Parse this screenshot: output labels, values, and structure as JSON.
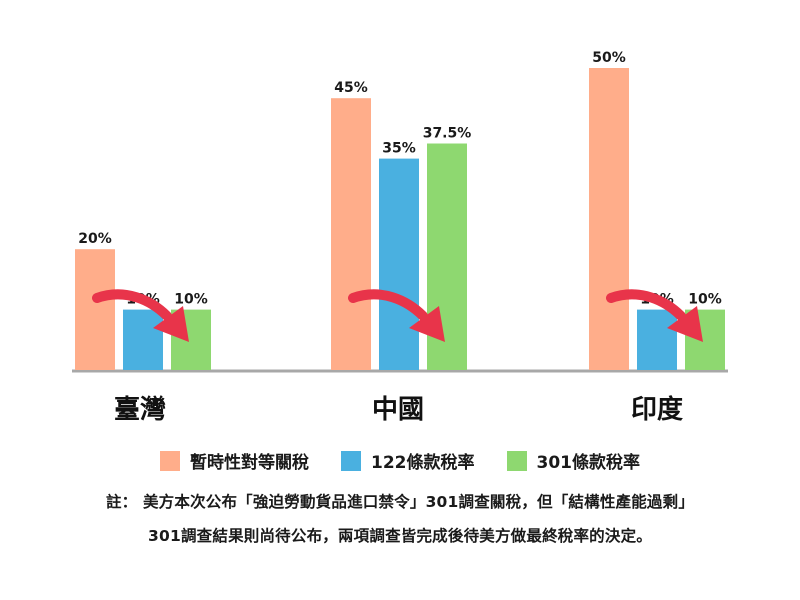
{
  "chart_data": {
    "type": "bar",
    "categories": [
      "臺灣",
      "中國",
      "印度"
    ],
    "series": [
      {
        "name": "暫時性對等關稅",
        "color": "#FFAD8A",
        "values": [
          20,
          45,
          50
        ],
        "labels": [
          "20%",
          "45%",
          "50%"
        ]
      },
      {
        "name": "122條款稅率",
        "color": "#4AB0E0",
        "values": [
          10,
          35,
          10
        ],
        "labels": [
          "10%",
          "35%",
          "10%"
        ]
      },
      {
        "name": "301條款稅率",
        "color": "#8ED870",
        "values": [
          10,
          37.5,
          10
        ],
        "labels": [
          "10%",
          "37.5%",
          "10%"
        ]
      }
    ],
    "ylim": [
      0,
      50
    ],
    "grid": false,
    "legend_position": "bottom",
    "arrow_color": "#E8344A",
    "axis_color": "#A8A8A8"
  },
  "note": {
    "line1": "註：  美方本次公布「強迫勞動貨品進口禁令」301調查關稅，但「結構性產能過剩」",
    "line2": "301調查結果則尚待公布，兩項調查皆完成後待美方做最終稅率的決定。"
  }
}
